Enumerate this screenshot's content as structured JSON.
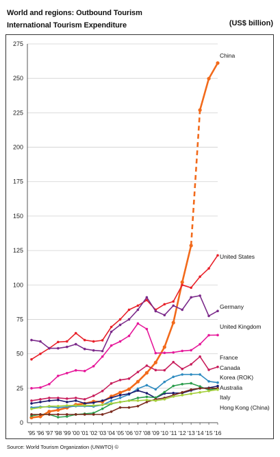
{
  "header": {
    "title_line1": "World and regions: Outbound Tourism",
    "title_line2": "International Tourism Expenditure",
    "unit": "(US$ billion)"
  },
  "source": "Source: World Tourism Organization (UNWTO) ©",
  "chart_data": {
    "type": "line",
    "title": "International Tourism Expenditure",
    "ylabel": "(US$ billion)",
    "ylim": [
      0,
      275
    ],
    "yticks": [
      0,
      25,
      50,
      75,
      100,
      125,
      150,
      175,
      200,
      225,
      250,
      275
    ],
    "grid": true,
    "x_labels": [
      "'95",
      "'96",
      "'97",
      "'98",
      "'99",
      "'00",
      "'01",
      "'02",
      "'03",
      "'04",
      "'05",
      "'06",
      "'07",
      "'08",
      "'09",
      "'10",
      "'11",
      "'12",
      "'13",
      "'14",
      "'15",
      "'16"
    ],
    "series": [
      {
        "name": "China",
        "color": "#f26a1b",
        "dashed_from_index": 18,
        "values": [
          3.7,
          4.5,
          8.1,
          9.2,
          10.9,
          13.1,
          13.9,
          15.4,
          15.2,
          19.1,
          21.8,
          24.3,
          29.8,
          36.2,
          43.7,
          54.9,
          72.6,
          102,
          128.6,
          227,
          249.8,
          261.1
        ]
      },
      {
        "name": "United States",
        "color": "#e8212a",
        "values": [
          46,
          50,
          54,
          58.6,
          59,
          65,
          60,
          59,
          59.8,
          69.5,
          75,
          82,
          85,
          89,
          82,
          86,
          88,
          100,
          98,
          106,
          112,
          121.5
        ]
      },
      {
        "name": "Germany",
        "color": "#7b2a8a",
        "values": [
          60,
          59,
          54,
          54,
          55,
          57,
          53.5,
          52.5,
          52,
          66,
          71,
          75,
          82,
          91,
          81,
          78.1,
          85,
          82,
          91,
          92.2,
          77.5,
          81.1
        ]
      },
      {
        "name": "United Kingdom",
        "color": "#e6189a",
        "values": [
          25,
          25.5,
          28,
          34,
          36,
          38,
          37.5,
          41,
          48,
          56,
          59,
          63,
          72,
          68,
          50.5,
          50.7,
          51,
          52.1,
          52.6,
          57,
          63.5,
          63.6
        ]
      },
      {
        "name": "France",
        "color": "#c81e5c",
        "values": [
          16,
          17,
          18,
          18,
          17.5,
          18,
          17,
          19.5,
          23,
          28.5,
          31,
          32,
          36.8,
          41.4,
          38.2,
          38.1,
          44,
          39,
          42.4,
          48,
          38.4,
          40.5
        ]
      },
      {
        "name": "Canada",
        "color": "#2e8bc0",
        "values": [
          11,
          11.5,
          11.5,
          11,
          11.5,
          12,
          12,
          11.8,
          12.9,
          15.9,
          18,
          20.5,
          24.7,
          27.2,
          24.2,
          29.6,
          33.3,
          35,
          35,
          35,
          30,
          29.1
        ]
      },
      {
        "name": "Korea (ROK)",
        "color": "#1b1b6e",
        "values": [
          14,
          15,
          16,
          16.5,
          15,
          16,
          14,
          14.5,
          16,
          18.1,
          20,
          21,
          23.3,
          21.4,
          18,
          21.2,
          21.5,
          21.5,
          23.4,
          25,
          25.3,
          26.6
        ]
      },
      {
        "name": "Australia",
        "color": "#2b9d4c",
        "values": [
          5,
          6,
          6,
          4,
          4.5,
          6,
          6.5,
          7,
          10.1,
          13.7,
          15,
          16,
          18,
          18.8,
          18.2,
          22.2,
          26.7,
          28,
          28.6,
          26.3,
          23.8,
          24.9
        ]
      },
      {
        "name": "Italy",
        "color": "#7a2a1d",
        "values": [
          6,
          6,
          6,
          6,
          6,
          6,
          6,
          6,
          6,
          8,
          11,
          11,
          12,
          15,
          17,
          18,
          20,
          22,
          24,
          25,
          25,
          25
        ]
      },
      {
        "name": "Hong Kong (China)",
        "color": "#a5cf3b",
        "values": [
          10,
          11,
          12,
          12,
          12.5,
          12.5,
          12.5,
          12.5,
          13,
          14,
          15,
          16,
          16,
          16.5,
          16,
          17,
          19,
          20,
          21,
          22,
          23,
          24
        ]
      }
    ]
  }
}
